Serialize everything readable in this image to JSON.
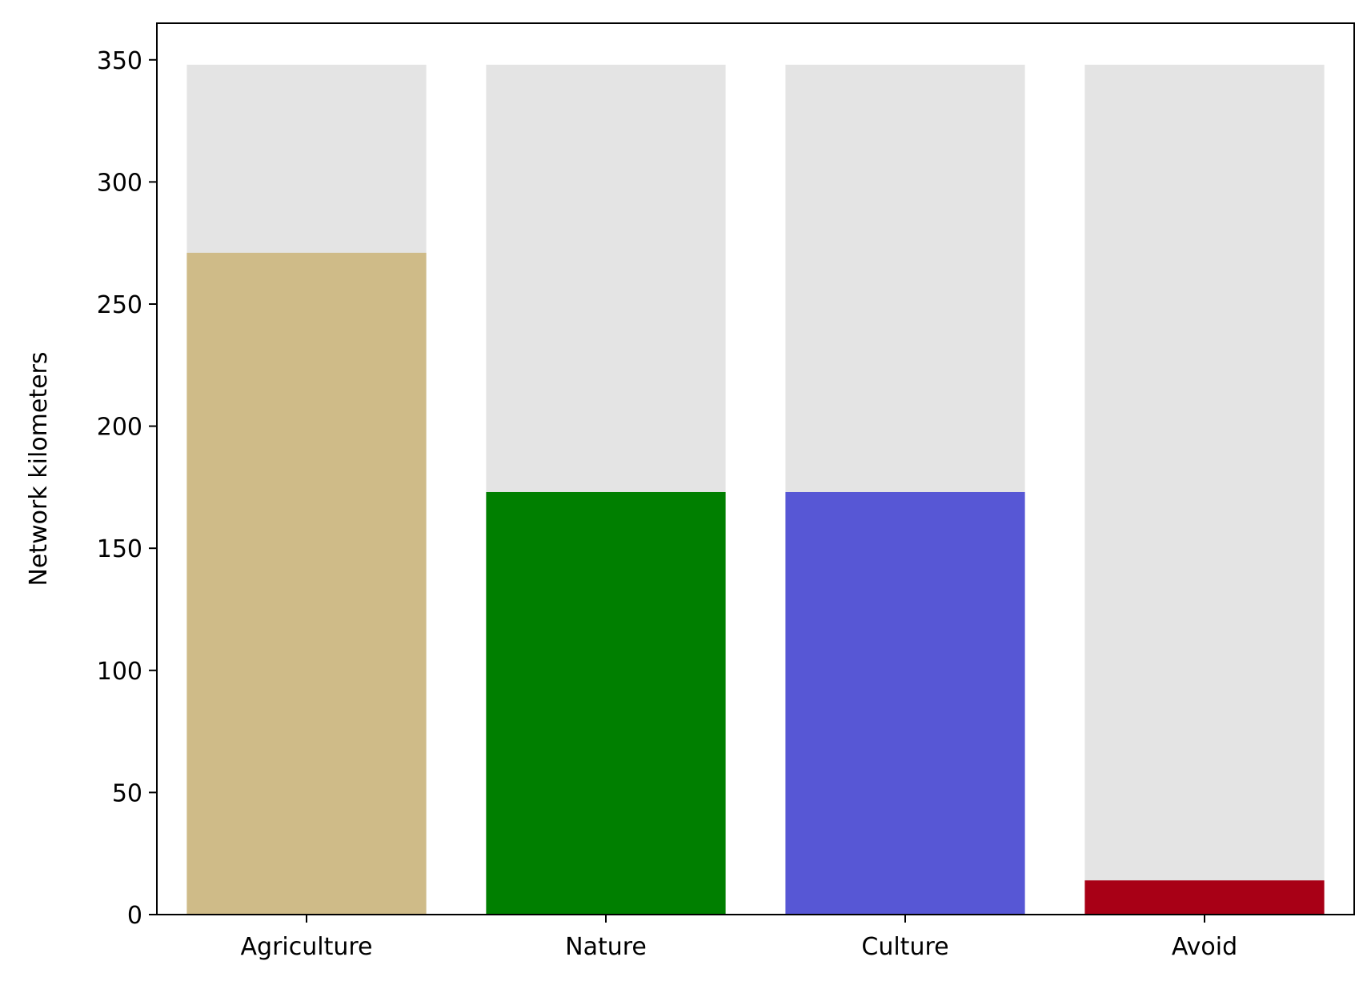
{
  "chart_data": {
    "type": "bar",
    "title": "",
    "xlabel": "",
    "ylabel": "Network kilometers",
    "categories": [
      "Agriculture",
      "Nature",
      "Culture",
      "Avoid"
    ],
    "series": [
      {
        "values": [
          348,
          348,
          348,
          348
        ],
        "color": "#e4e4e4"
      },
      {
        "values": [
          271,
          173,
          173,
          14
        ],
        "colors": [
          "#cfbb88",
          "#007f00",
          "#5757d5",
          "#a80016"
        ]
      }
    ],
    "ylim": [
      0,
      365
    ],
    "yticks": [
      "0",
      "50",
      "100",
      "150",
      "200",
      "250",
      "300",
      "350"
    ],
    "grid": false,
    "legend": false
  }
}
